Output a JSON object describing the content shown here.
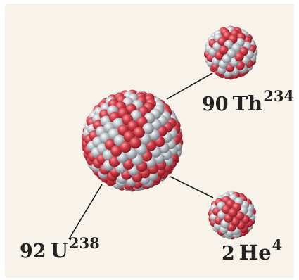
{
  "colors": {
    "background": "#f7f3ea",
    "proton": "#cc3844",
    "neutron": "#b7bcc2",
    "line": "#1a1a1a",
    "text": "#222222"
  },
  "nuclei": {
    "uranium": {
      "number": "92",
      "symbol": "U",
      "mass": "238"
    },
    "thorium": {
      "number": "90",
      "symbol": "Th",
      "mass": "234"
    },
    "helium": {
      "number": "2",
      "symbol": "He",
      "mass": "4"
    }
  }
}
